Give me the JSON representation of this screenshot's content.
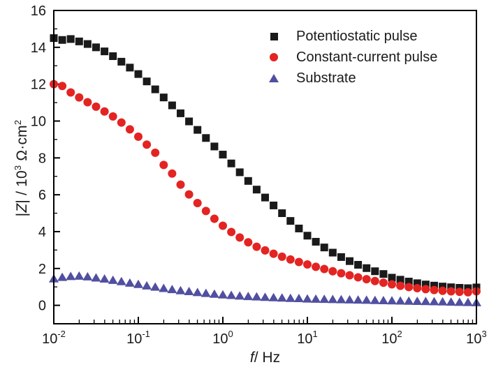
{
  "figure_title": "",
  "legend": {
    "position": "top-right-inside",
    "items": [
      {
        "label": "Potentiostatic pulse",
        "marker": "square",
        "color": "#1a1a1a"
      },
      {
        "label": "Constant-current pulse",
        "marker": "circle",
        "color": "#e32422"
      },
      {
        "label": "Substrate",
        "marker": "triangle",
        "color": "#514fa0"
      }
    ]
  },
  "chart_data": {
    "type": "scatter",
    "x_scale": "log",
    "xlabel_parts": {
      "var": "f",
      "rest": "/ Hz"
    },
    "ylabel_parts": {
      "p1": "|",
      "var": "Z",
      "p2": "| / 10",
      "sup1": "3",
      "p3": " Ω·cm",
      "sup2": "2"
    },
    "xlabel": "f / Hz",
    "ylabel": "|Z| / 10^3 Ohm cm^2",
    "xlim_exponents": [
      -2,
      3
    ],
    "ylim": [
      -1,
      16
    ],
    "x_major_tick_exponents": [
      -2,
      -1,
      0,
      1,
      2,
      3
    ],
    "x_tick_base": "10",
    "x_minor_mantissas": [
      2,
      3,
      4,
      5,
      6,
      7,
      8,
      9
    ],
    "y_major_ticks": [
      0,
      2,
      4,
      6,
      8,
      10,
      12,
      14,
      16
    ],
    "y_minor_ticks": [
      1,
      3,
      5,
      7,
      9,
      11,
      13,
      15
    ],
    "grid": false,
    "frame": "box",
    "log_f_start": -2.0,
    "log_f_step": 0.1,
    "series": [
      {
        "name": "Potentiostatic pulse",
        "marker": "square",
        "color": "#1a1a1a",
        "values": [
          14.5,
          14.4,
          14.45,
          14.32,
          14.18,
          14.0,
          13.78,
          13.52,
          13.22,
          12.9,
          12.55,
          12.15,
          11.72,
          11.28,
          10.85,
          10.42,
          9.98,
          9.52,
          9.08,
          8.62,
          8.18,
          7.7,
          7.22,
          6.75,
          6.28,
          5.85,
          5.42,
          5.0,
          4.58,
          4.17,
          3.78,
          3.45,
          3.14,
          2.86,
          2.62,
          2.4,
          2.2,
          2.02,
          1.85,
          1.7,
          1.5,
          1.39,
          1.29,
          1.2,
          1.13,
          1.07,
          1.02,
          0.98,
          0.95,
          0.93,
          0.97
        ]
      },
      {
        "name": "Constant-current pulse",
        "marker": "circle",
        "color": "#e32422",
        "values": [
          12.0,
          11.9,
          11.55,
          11.28,
          11.02,
          10.78,
          10.52,
          10.25,
          9.92,
          9.55,
          9.15,
          8.72,
          8.28,
          7.62,
          7.15,
          6.55,
          6.02,
          5.55,
          5.12,
          4.7,
          4.32,
          3.98,
          3.68,
          3.42,
          3.18,
          2.98,
          2.8,
          2.64,
          2.49,
          2.35,
          2.22,
          2.09,
          1.97,
          1.85,
          1.74,
          1.63,
          1.52,
          1.42,
          1.32,
          1.23,
          1.14,
          1.06,
          0.99,
          0.93,
          0.88,
          0.83,
          0.79,
          0.76,
          0.73,
          0.71,
          0.76
        ]
      },
      {
        "name": "Substrate",
        "marker": "triangle",
        "color": "#514fa0",
        "values": [
          1.45,
          1.53,
          1.58,
          1.6,
          1.56,
          1.5,
          1.44,
          1.37,
          1.3,
          1.22,
          1.15,
          1.07,
          1.0,
          0.93,
          0.87,
          0.81,
          0.76,
          0.71,
          0.66,
          0.62,
          0.58,
          0.55,
          0.52,
          0.49,
          0.47,
          0.45,
          0.43,
          0.41,
          0.39,
          0.38,
          0.36,
          0.35,
          0.34,
          0.33,
          0.32,
          0.31,
          0.3,
          0.29,
          0.28,
          0.27,
          0.26,
          0.25,
          0.24,
          0.23,
          0.22,
          0.21,
          0.2,
          0.19,
          0.18,
          0.17,
          0.16
        ]
      }
    ]
  }
}
